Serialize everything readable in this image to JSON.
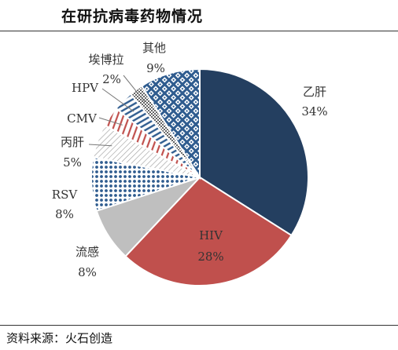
{
  "title": "在研抗病毒药物情况",
  "source": "资料来源：火石创造",
  "chart_data": {
    "type": "pie",
    "title": "在研抗病毒药物情况",
    "start_angle_deg": 0,
    "direction": "clockwise",
    "slices": [
      {
        "name": "乙肝",
        "value": 34,
        "label": "34%",
        "fill": "#243f60",
        "pattern": "solid",
        "label_color": "#333333"
      },
      {
        "name": "HIV",
        "value": 28,
        "label": "28%",
        "fill": "#c0504d",
        "pattern": "solid",
        "label_color": "#333333"
      },
      {
        "name": "流感",
        "value": 8,
        "label": "8%",
        "fill": "#bfbfbf",
        "pattern": "solid",
        "label_color": "#333333"
      },
      {
        "name": "RSV",
        "value": 8,
        "label": "8%",
        "fill": "#2f5c8f",
        "pattern": "dots",
        "label_color": "#333333"
      },
      {
        "name": "丙肝",
        "value": 5,
        "label": "5%",
        "fill": "#8c8c8c",
        "pattern": "diagonal",
        "label_color": "#333333"
      },
      {
        "name": "CMV",
        "value": 3,
        "label": "",
        "fill": "#c0504d",
        "pattern": "vertical",
        "label_color": "#333333"
      },
      {
        "name": "HPV",
        "value": 3,
        "label": "",
        "fill": "#2f5c8f",
        "pattern": "hstripes",
        "label_color": "#333333"
      },
      {
        "name": "埃博拉",
        "value": 2,
        "label": "2%",
        "fill": "#666666",
        "pattern": "checker",
        "label_color": "#333333"
      },
      {
        "name": "其他",
        "value": 9,
        "label": "9%",
        "fill": "#2f5c8f",
        "pattern": "lattice",
        "label_color": "#333333"
      }
    ]
  }
}
